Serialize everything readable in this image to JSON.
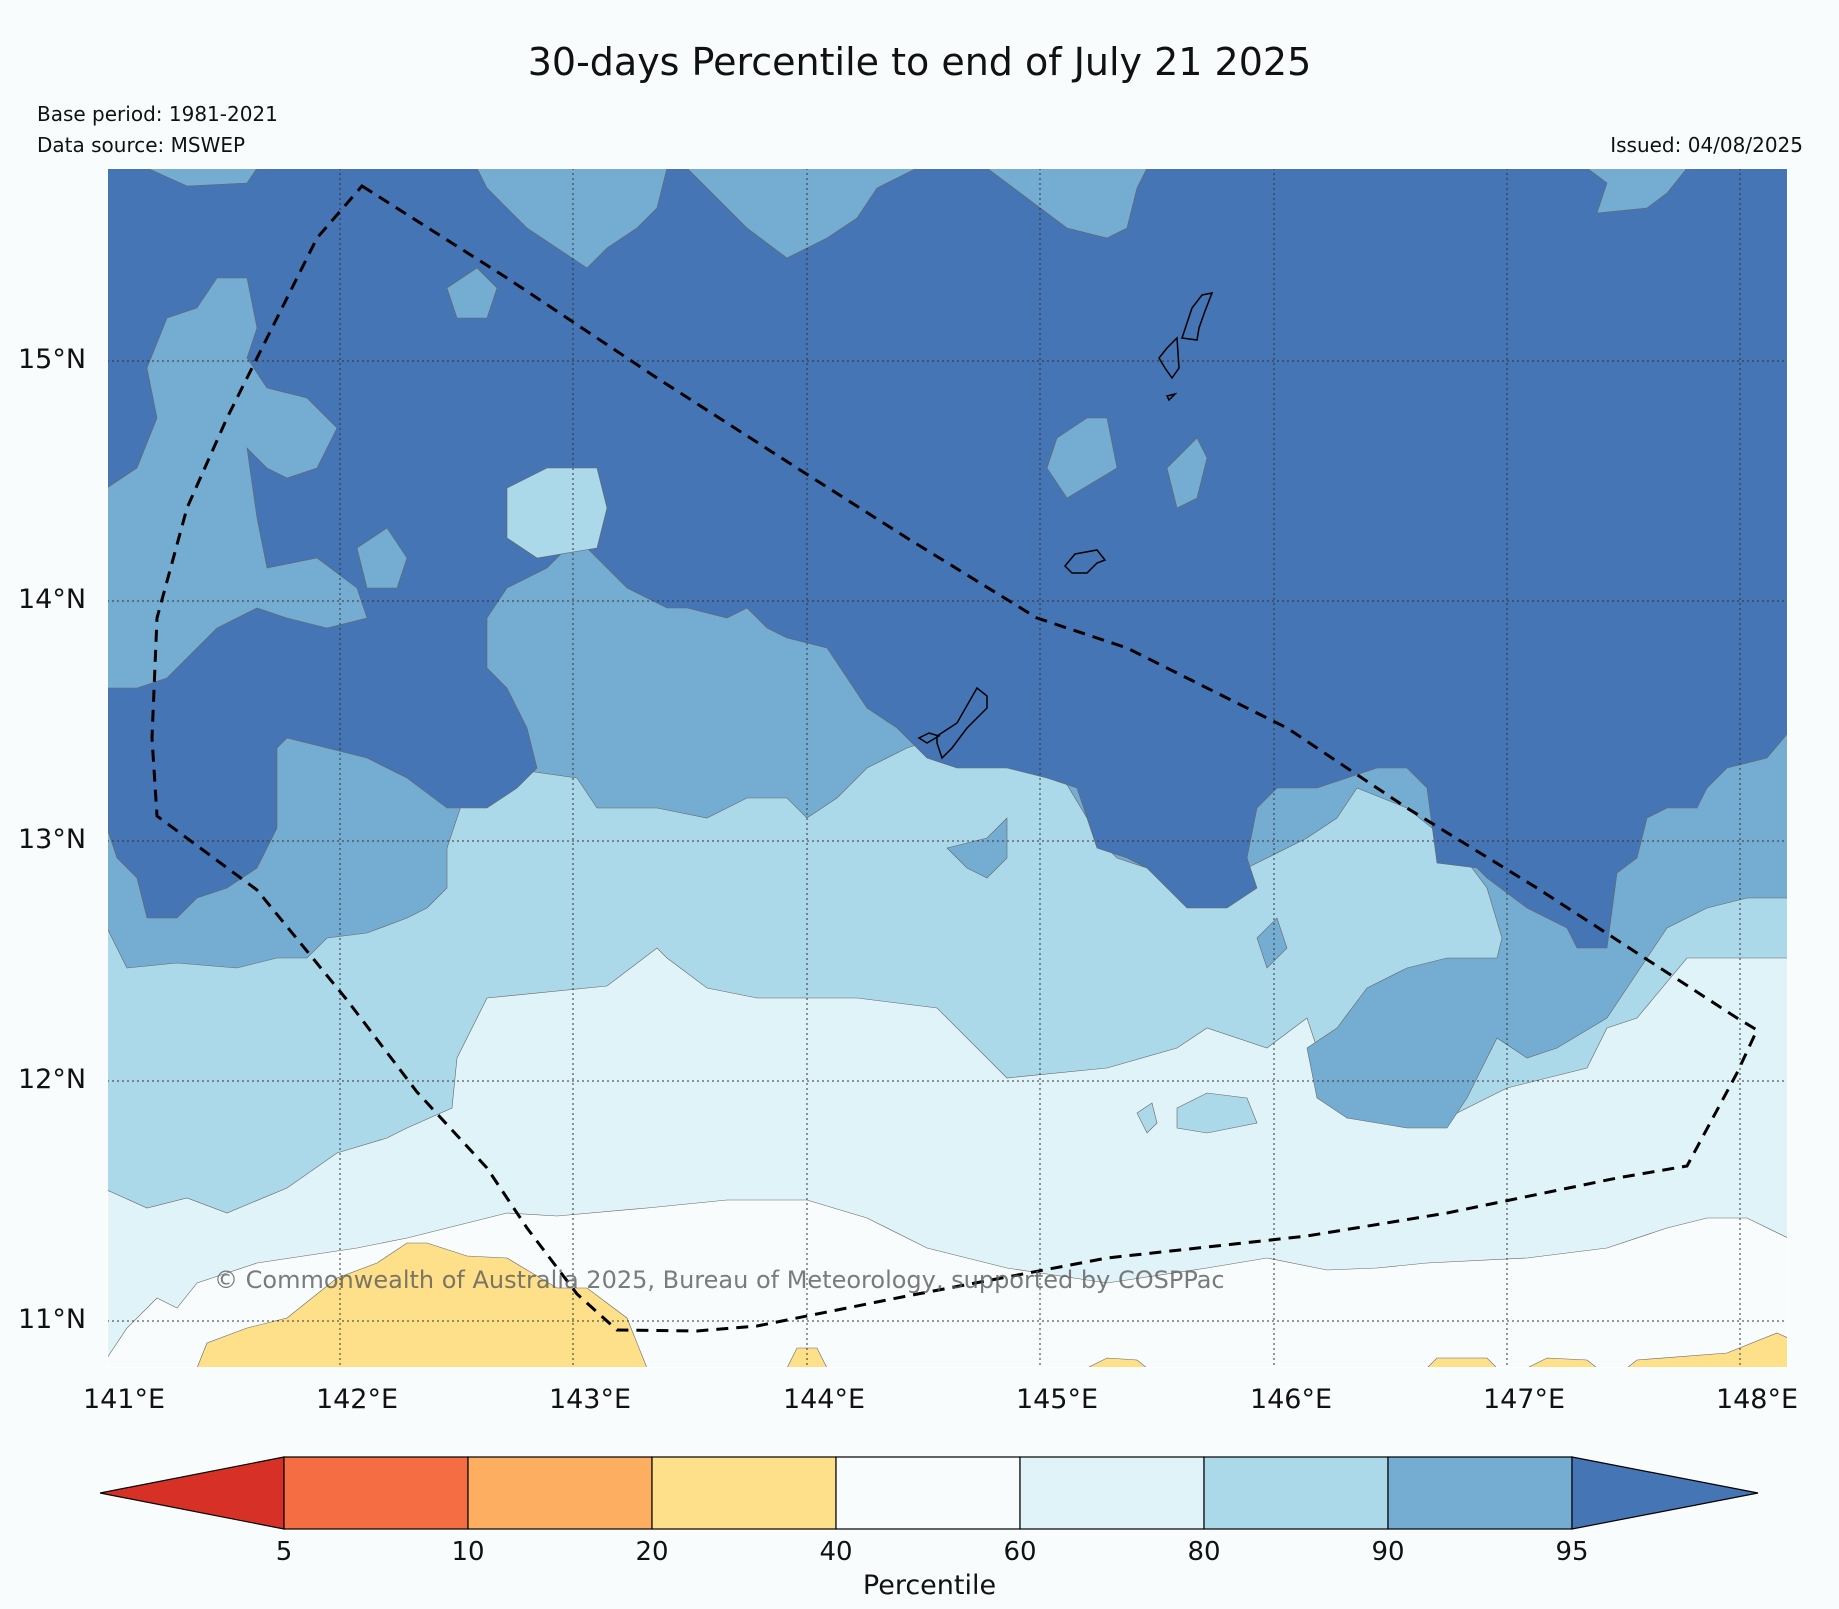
{
  "title": "30-days Percentile to end of July 21 2025",
  "base_period": "Base period: 1981-2021",
  "data_source": "Data source: MSWEP",
  "issued": "Issued: 04/08/2025",
  "copyright": "© Commonwealth of Australia 2025, Bureau of Meteorology, supported by COSPPac",
  "map": {
    "lon_labels": [
      "141°E",
      "142°E",
      "143°E",
      "144°E",
      "145°E",
      "146°E",
      "147°E",
      "148°E"
    ],
    "lat_labels": [
      "15°N",
      "14°N",
      "13°N",
      "12°N",
      "11°N"
    ],
    "lon_range": [
      141.0,
      148.2
    ],
    "lat_range": [
      10.8,
      15.8
    ]
  },
  "legend": {
    "label": "Percentile",
    "ticks": [
      "5",
      "10",
      "20",
      "40",
      "60",
      "80",
      "90",
      "95"
    ],
    "colors": [
      "#d73027",
      "#f46d43",
      "#fdae61",
      "#fee08b",
      "#f8fcfd",
      "#e0f3f8",
      "#abd9e9",
      "#74add1",
      "#4575b4"
    ]
  }
}
